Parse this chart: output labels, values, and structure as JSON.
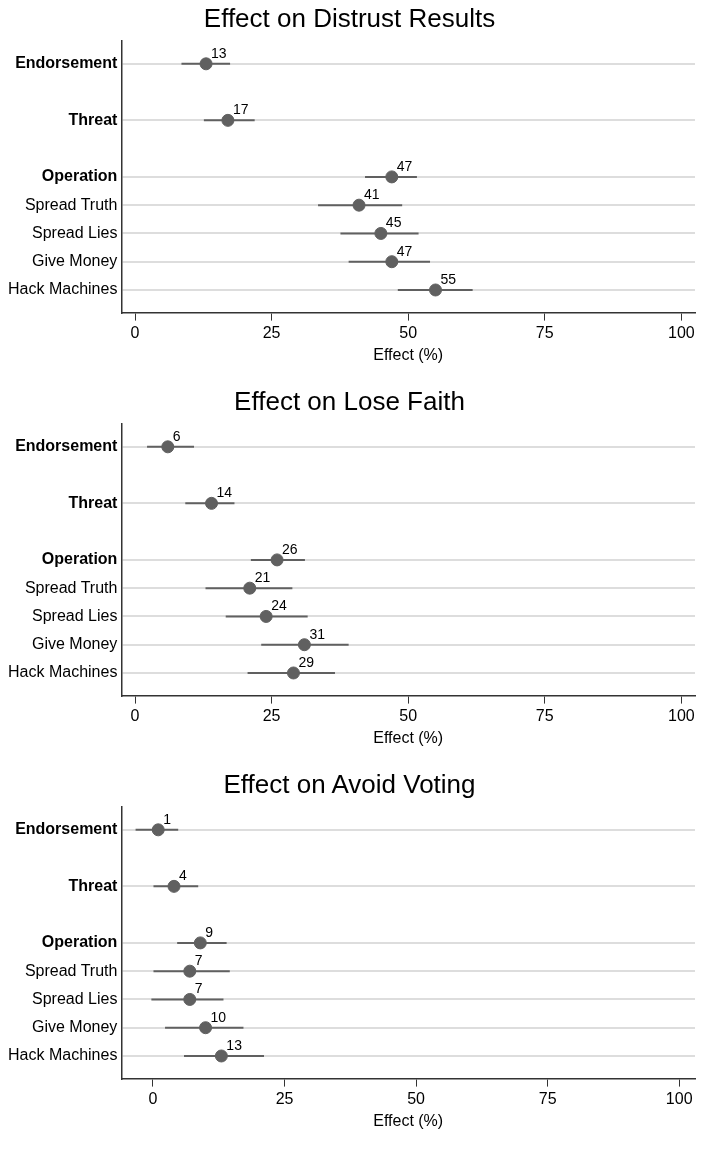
{
  "chart_data": [
    {
      "type": "scatter",
      "orientation": "horizontal",
      "title": "Effect on Distrust Results",
      "xlabel": "Effect (%)",
      "categories": [
        "Endorsement",
        null,
        "Threat",
        null,
        "Operation",
        "Spread Truth",
        "Spread Lies",
        "Give Money",
        "Hack Machines"
      ],
      "values": [
        13,
        null,
        17,
        null,
        47,
        41,
        45,
        47,
        55
      ],
      "errors": [
        [
          8.5,
          17.4
        ],
        null,
        [
          12.6,
          21.9
        ],
        null,
        [
          42.1,
          51.6
        ],
        [
          33.5,
          48.9
        ],
        [
          37.6,
          51.9
        ],
        [
          39.1,
          54.0
        ],
        [
          48.1,
          61.8
        ]
      ],
      "color": "#606060",
      "marker": "circle",
      "data_labels": true,
      "grid": "y",
      "xlim": [
        -2.5,
        102.5
      ],
      "xticks": [
        0,
        25,
        50,
        75,
        100
      ]
    },
    {
      "type": "scatter",
      "orientation": "horizontal",
      "title": "Effect on Lose Faith",
      "xlabel": "Effect (%)",
      "categories": [
        "Endorsement",
        null,
        "Threat",
        null,
        "Operation",
        "Spread Truth",
        "Spread Lies",
        "Give Money",
        "Hack Machines"
      ],
      "values": [
        6,
        null,
        14,
        null,
        26,
        21,
        24,
        31,
        29
      ],
      "errors": [
        [
          2.2,
          10.8
        ],
        null,
        [
          9.2,
          18.2
        ],
        null,
        [
          21.2,
          31.1
        ],
        [
          12.9,
          28.8
        ],
        [
          16.6,
          31.6
        ],
        [
          23.1,
          39.1
        ],
        [
          20.6,
          36.6
        ]
      ],
      "color": "#606060",
      "marker": "circle",
      "data_labels": true,
      "grid": "y",
      "xlim": [
        -2.5,
        102.5
      ],
      "xticks": [
        0,
        25,
        50,
        75,
        100
      ]
    },
    {
      "type": "scatter",
      "orientation": "horizontal",
      "title": "Effect on Avoid Voting",
      "xlabel": "Effect (%)",
      "categories": [
        "Endorsement",
        null,
        "Threat",
        null,
        "Operation",
        "Spread Truth",
        "Spread Lies",
        "Give Money",
        "Hack Machines"
      ],
      "values": [
        1,
        null,
        4,
        null,
        9,
        7,
        7,
        10,
        13
      ],
      "errors": [
        [
          -3.3,
          4.8
        ],
        null,
        [
          0.1,
          8.6
        ],
        null,
        [
          4.6,
          14.0
        ],
        [
          0.1,
          14.6
        ],
        [
          -0.3,
          13.4
        ],
        [
          2.3,
          17.2
        ],
        [
          5.9,
          21.1
        ]
      ],
      "color": "#606060",
      "marker": "circle",
      "data_labels": true,
      "grid": "y",
      "xlim": [
        -6,
        103
      ],
      "xticks": [
        0,
        25,
        50,
        75,
        100
      ]
    }
  ]
}
